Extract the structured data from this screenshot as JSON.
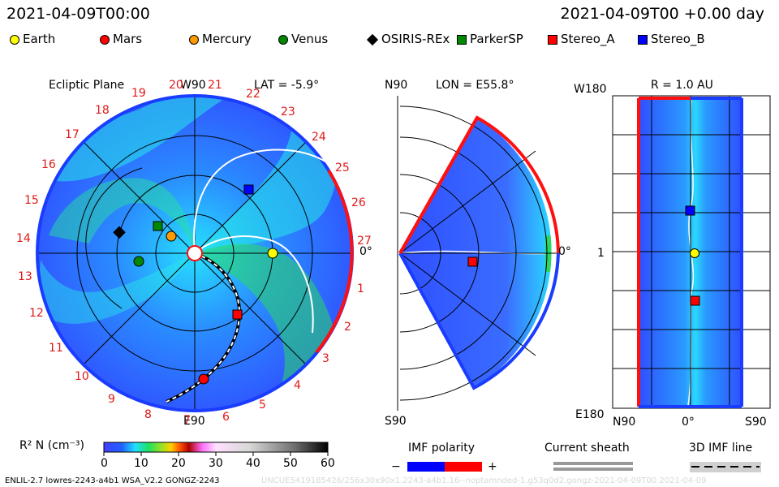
{
  "header": {
    "datetime_left": "2021-04-09T00:00",
    "datetime_right": "2021-04-09T00 +0.00 day"
  },
  "legend": [
    {
      "label": "Earth",
      "shape": "circle",
      "color": "#ffff00"
    },
    {
      "label": "Mars",
      "shape": "circle",
      "color": "#ff0000"
    },
    {
      "label": "Mercury",
      "shape": "circle",
      "color": "#ff9900"
    },
    {
      "label": "Venus",
      "shape": "circle",
      "color": "#008800"
    },
    {
      "label": "OSIRIS-REx",
      "shape": "diamond",
      "color": "#000000"
    },
    {
      "label": "ParkerSP",
      "shape": "square",
      "color": "#008800"
    },
    {
      "label": "Stereo_A",
      "shape": "square",
      "color": "#ff0000"
    },
    {
      "label": "Stereo_B",
      "shape": "square",
      "color": "#0000ff"
    }
  ],
  "panel1": {
    "title": "Ecliptic Plane",
    "top_label": "W90",
    "lat_label": "LAT = -5.9°",
    "bottom_label": "E90",
    "right_label": "0°",
    "carrington_numbers": [
      "27",
      "1",
      "2",
      "3",
      "4",
      "5",
      "6",
      "7",
      "8",
      "9",
      "10",
      "11",
      "12",
      "13",
      "14",
      "15",
      "16",
      "17",
      "18",
      "19",
      "20",
      "21",
      "22",
      "23",
      "24",
      "25",
      "26"
    ]
  },
  "panel2": {
    "top_label": "N90",
    "lon_label": "LON = E55.8°",
    "bottom_label": "S90",
    "right_label": "0°"
  },
  "panel3": {
    "top_label": "W180",
    "r_label": "R = 1.0 AU",
    "left_mid_label": "1",
    "bottom_left_label": "E180",
    "bottom_n": "N90",
    "bottom_zero": "0°",
    "bottom_s": "S90"
  },
  "colorbar": {
    "label": "R² N (cm⁻³)",
    "ticks": [
      "0",
      "10",
      "20",
      "30",
      "40",
      "50",
      "60"
    ]
  },
  "imf": {
    "title": "IMF polarity",
    "minus": "−",
    "plus": "+"
  },
  "sheath": {
    "title": "Current sheath"
  },
  "imf3d": {
    "title": "3D IMF line"
  },
  "footer": {
    "left": "ENLIL-2.7 lowres-2243-a4b1 WSA_V2.2 GONGZ-2243",
    "right": "UNCUE5419185426/256x30x90x1.2243-a4b1.16--noptamnded-1.g53q0d2.gongz-2021-04-09T00     2021-04-09"
  },
  "colors": {
    "blue_band": "#1a3cff",
    "red_band": "#ff1010",
    "bg_low": "#2f6bff",
    "bg_mid": "#2ad8ff",
    "bg_high": "#29e86a"
  }
}
